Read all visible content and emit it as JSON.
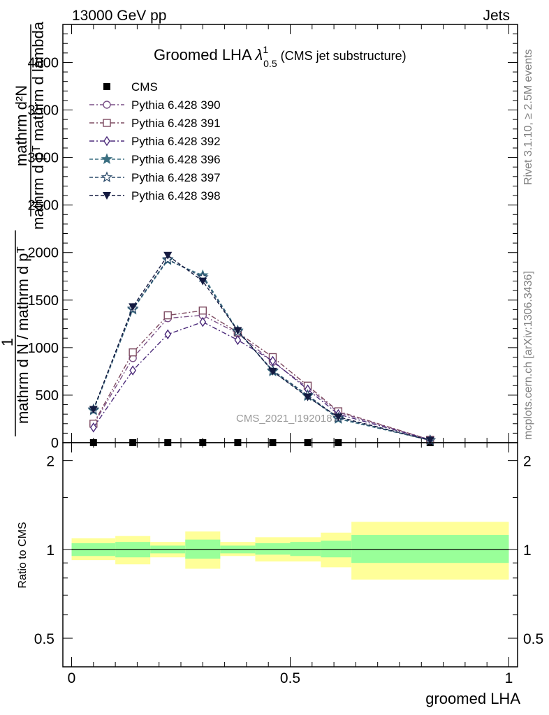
{
  "header": {
    "left": "13000 GeV pp",
    "right": "Jets"
  },
  "side_labels": {
    "rivet": "Rivet 3.1.10, ≥ 2.5M events",
    "mcplots": "mcplots.cern.ch [arXiv:1306.3436]"
  },
  "watermark": "CMS_2021_I1920187",
  "colors": {
    "cms": "#000000",
    "p390": "#7a4f86",
    "p391": "#7d4a60",
    "p392": "#4b2a7a",
    "p396": "#3a6e80",
    "p397": "#2a4a6a",
    "p398": "#141a40",
    "band_inner": "#99ff99",
    "band_outer": "#ffff99"
  },
  "chart_data": [
    {
      "type": "line",
      "title": "Groomed LHA",
      "title_math": "λ",
      "title_sup": "1",
      "title_sub": "0.5",
      "title_suffix": "(CMS jet substructure)",
      "ylabel_lines": [
        "mathrm d²N",
        "mathrm d pᵀ mathrm d lambda",
        "1",
        "mathrm d N / mathrm d pᵀ"
      ],
      "xlim": [
        -0.02,
        1.02
      ],
      "ylim": [
        0,
        4400
      ],
      "yticks": [
        0,
        500,
        1000,
        1500,
        2000,
        2500,
        3000,
        3500,
        4000
      ],
      "legend_position": "top-left",
      "x": [
        0.05,
        0.14,
        0.22,
        0.3,
        0.38,
        0.46,
        0.54,
        0.61,
        0.82
      ],
      "series": [
        {
          "name": "CMS",
          "marker": "square-filled",
          "color_key": "cms",
          "dash": "none",
          "values": [
            0,
            0,
            0,
            0,
            0,
            0,
            0,
            0,
            0
          ]
        },
        {
          "name": "Pythia 6.428 390",
          "marker": "circle-open",
          "color_key": "p390",
          "dash": "dashdot",
          "values": [
            190,
            890,
            1310,
            1340,
            1150,
            850,
            580,
            320,
            30
          ]
        },
        {
          "name": "Pythia 6.428 391",
          "marker": "square-open",
          "color_key": "p391",
          "dash": "dashdot",
          "values": [
            200,
            950,
            1340,
            1390,
            1160,
            900,
            600,
            330,
            30
          ]
        },
        {
          "name": "Pythia 6.428 392",
          "marker": "diamond-open",
          "color_key": "p392",
          "dash": "dashdot",
          "values": [
            160,
            760,
            1140,
            1270,
            1080,
            860,
            560,
            300,
            30
          ]
        },
        {
          "name": "Pythia 6.428 396",
          "marker": "star-filled",
          "color_key": "p396",
          "dash": "dash",
          "values": [
            340,
            1400,
            1920,
            1760,
            1180,
            750,
            490,
            250,
            25
          ]
        },
        {
          "name": "Pythia 6.428 397",
          "marker": "star-open",
          "color_key": "p397",
          "dash": "dash",
          "values": [
            350,
            1410,
            1930,
            1740,
            1170,
            760,
            500,
            260,
            25
          ]
        },
        {
          "name": "Pythia 6.428 398",
          "marker": "triangle-down-filled",
          "color_key": "p398",
          "dash": "dash",
          "values": [
            350,
            1430,
            1970,
            1700,
            1180,
            750,
            480,
            270,
            25
          ]
        }
      ]
    },
    {
      "type": "area",
      "ylabel": "Ratio to CMS",
      "xlabel": "groomed LHA",
      "xlim": [
        -0.02,
        1.02
      ],
      "ylim": [
        0.4,
        2.3
      ],
      "yscale": "log",
      "yticks": [
        0.5,
        1,
        2
      ],
      "xticks": [
        0,
        0.5,
        1
      ],
      "reference_line": 1,
      "bins": [
        {
          "x0": 0.0,
          "x1": 0.1,
          "inner": [
            0.95,
            1.05
          ],
          "outer": [
            0.92,
            1.09
          ]
        },
        {
          "x0": 0.1,
          "x1": 0.18,
          "inner": [
            0.94,
            1.06
          ],
          "outer": [
            0.89,
            1.11
          ]
        },
        {
          "x0": 0.18,
          "x1": 0.26,
          "inner": [
            0.97,
            1.03
          ],
          "outer": [
            0.94,
            1.06
          ]
        },
        {
          "x0": 0.26,
          "x1": 0.34,
          "inner": [
            0.93,
            1.08
          ],
          "outer": [
            0.86,
            1.15
          ]
        },
        {
          "x0": 0.34,
          "x1": 0.42,
          "inner": [
            0.97,
            1.03
          ],
          "outer": [
            0.95,
            1.06
          ]
        },
        {
          "x0": 0.42,
          "x1": 0.5,
          "inner": [
            0.96,
            1.05
          ],
          "outer": [
            0.91,
            1.1
          ]
        },
        {
          "x0": 0.5,
          "x1": 0.57,
          "inner": [
            0.95,
            1.06
          ],
          "outer": [
            0.91,
            1.1
          ]
        },
        {
          "x0": 0.57,
          "x1": 0.64,
          "inner": [
            0.94,
            1.07
          ],
          "outer": [
            0.87,
            1.14
          ]
        },
        {
          "x0": 0.64,
          "x1": 1.0,
          "inner": [
            0.9,
            1.12
          ],
          "outer": [
            0.79,
            1.24
          ]
        }
      ]
    }
  ]
}
